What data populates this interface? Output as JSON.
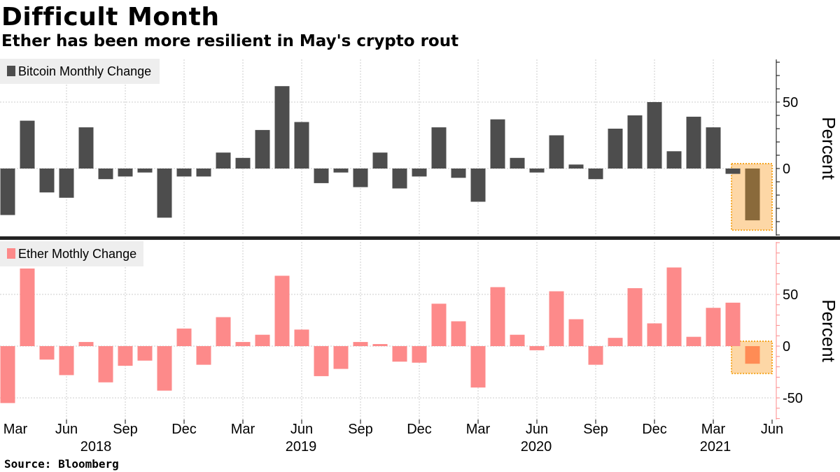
{
  "title": "Difficult Month",
  "subtitle": "Ether has been more resilient in May's crypto rout",
  "source": "Source: Bloomberg",
  "colors": {
    "bitcoin": "#4d4d4d",
    "ether": "#fd8a8a",
    "highlight_fill": "#fdd7a6",
    "highlight_border": "#f5a623",
    "bitcoin_highlight_bar": "#8a6a3b",
    "ether_highlight_bar": "#ff8c55",
    "grid": "#cccccc",
    "ether_axis": "#fd8a8a"
  },
  "chart_data": [
    {
      "type": "bar",
      "panel": "top",
      "legend": "Bitcoin Monthly Change",
      "legend_position": "top-left",
      "ylabel": "Percent",
      "yticks": [
        0,
        50
      ],
      "ylim": [
        -50,
        82
      ],
      "highlight_last": true,
      "values": [
        -35,
        36,
        -18,
        -22,
        31,
        -8,
        -6,
        -3,
        -37,
        -6,
        -6,
        12,
        8,
        29,
        62,
        35,
        -11,
        -3,
        -14,
        12,
        -15,
        -6,
        31,
        -7,
        -25,
        37,
        8,
        -3,
        25,
        3,
        -8,
        30,
        40,
        50,
        13,
        39,
        31,
        -4,
        -39
      ]
    },
    {
      "type": "bar",
      "panel": "bottom",
      "legend": "Ether Mothly Change",
      "legend_position": "top-left",
      "ylabel": "Percent",
      "yticks": [
        -50,
        0,
        50
      ],
      "ylim": [
        -72,
        100
      ],
      "highlight_last": true,
      "values": [
        -55,
        75,
        -13,
        -28,
        4,
        -35,
        -19,
        -14,
        -43,
        17,
        -18,
        28,
        4,
        11,
        68,
        16,
        -29,
        -22,
        4,
        2,
        -15,
        -16,
        41,
        24,
        -40,
        57,
        11,
        -4,
        53,
        26,
        -18,
        8,
        56,
        22,
        76,
        9,
        37,
        42,
        -17
      ]
    }
  ],
  "x_axis": {
    "start_month": "2018-03",
    "month_ticks": [
      "Mar",
      "Jun",
      "Sep",
      "Dec",
      "Mar",
      "Jun",
      "Sep",
      "Dec",
      "Mar",
      "Jun",
      "Sep",
      "Dec",
      "Mar",
      "Jun"
    ],
    "years": [
      "2018",
      "2019",
      "2020",
      "2021"
    ]
  }
}
